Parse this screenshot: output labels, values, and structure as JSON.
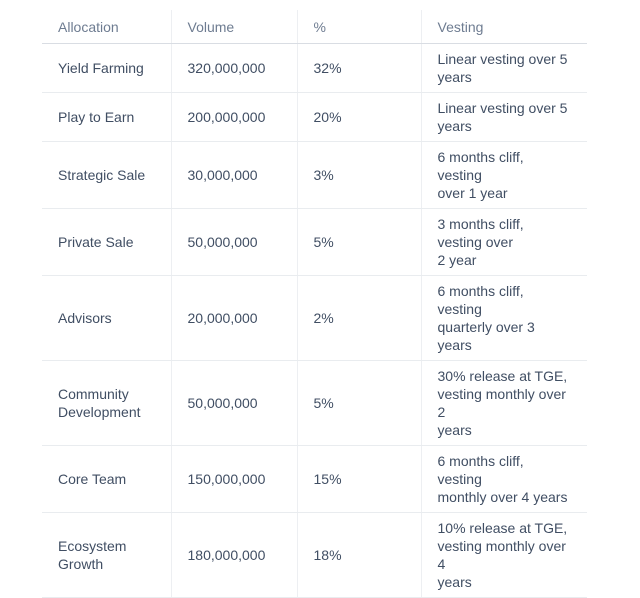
{
  "page": {
    "background_color": "#ffffff",
    "text_color_body": "#404e63",
    "text_color_header": "#6e7c91",
    "border_color_row": "#e9ecef",
    "border_color_header": "#d9dde3",
    "border_color_column": "#edeff2"
  },
  "table": {
    "columns": [
      {
        "key": "allocation",
        "label": "Allocation"
      },
      {
        "key": "volume",
        "label": "Volume"
      },
      {
        "key": "percent",
        "label": "%"
      },
      {
        "key": "vesting",
        "label": "Vesting"
      }
    ],
    "rows": [
      {
        "allocation": "Yield Farming",
        "volume": "320,000,000",
        "percent": "32%",
        "vesting": "Linear vesting over 5 years"
      },
      {
        "allocation": "Play to Earn",
        "volume": "200,000,000",
        "percent": "20%",
        "vesting": "Linear vesting over 5 years"
      },
      {
        "allocation": "Strategic Sale",
        "volume": "30,000,000",
        "percent": "3%",
        "vesting": "6 months cliff, vesting\nover 1 year"
      },
      {
        "allocation": "Private Sale",
        "volume": "50,000,000",
        "percent": "5%",
        "vesting": "3 months cliff, vesting over\n2 year"
      },
      {
        "allocation": "Advisors",
        "volume": "20,000,000",
        "percent": "2%",
        "vesting": "6 months cliff, vesting\nquarterly over 3 years"
      },
      {
        "allocation": "Community Development",
        "volume": "50,000,000",
        "percent": "5%",
        "vesting": "30% release at TGE,\nvesting monthly over 2\nyears"
      },
      {
        "allocation": "Core Team",
        "volume": "150,000,000",
        "percent": "15%",
        "vesting": "6 months cliff, vesting\nmonthly over 4 years"
      },
      {
        "allocation": "Ecosystem Growth",
        "volume": "180,000,000",
        "percent": "18%",
        "vesting": "10% release at TGE,\nvesting monthly over 4\nyears"
      }
    ]
  }
}
